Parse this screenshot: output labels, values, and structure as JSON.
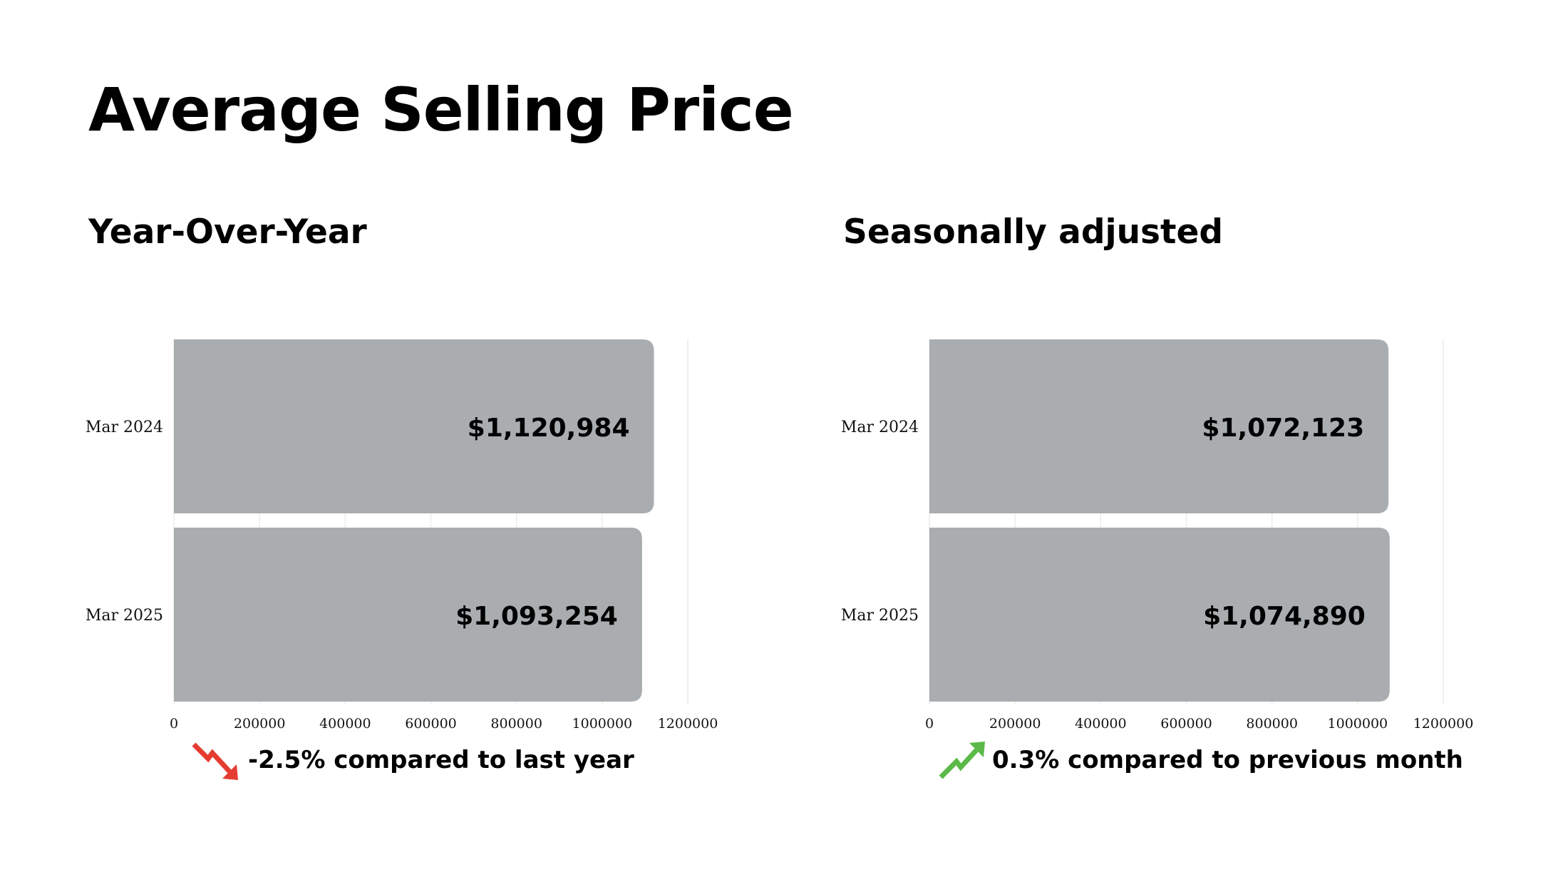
{
  "page": {
    "title": "Average Selling Price"
  },
  "colors": {
    "bar": "#a9adb0",
    "grid": "#ececec",
    "down_arrow": "#e53b30",
    "up_arrow": "#5ab947"
  },
  "chart_data": [
    {
      "type": "bar",
      "orientation": "horizontal",
      "title": "Year-Over-Year",
      "categories": [
        "Mar 2024",
        "Mar 2025"
      ],
      "values": [
        1120984,
        1093254
      ],
      "data_labels": [
        "$1,120,984",
        "$1,093,254"
      ],
      "xlim": [
        0,
        1200000
      ],
      "xticks": [
        "0",
        "200000",
        "400000",
        "600000",
        "800000",
        "1000000",
        "1200000"
      ],
      "grid": true,
      "footer": {
        "icon": "trend-down-arrow-icon",
        "text": "-2.5% compared to last year"
      }
    },
    {
      "type": "bar",
      "orientation": "horizontal",
      "title": "Seasonally adjusted",
      "categories": [
        "Mar 2024",
        "Mar 2025"
      ],
      "values": [
        1072123,
        1074890
      ],
      "data_labels": [
        "$1,072,123",
        "$1,074,890"
      ],
      "xlim": [
        0,
        1200000
      ],
      "xticks": [
        "0",
        "200000",
        "400000",
        "600000",
        "800000",
        "1000000",
        "1200000"
      ],
      "grid": true,
      "footer": {
        "icon": "trend-up-arrow-icon",
        "text": "0.3% compared to previous month"
      }
    }
  ]
}
